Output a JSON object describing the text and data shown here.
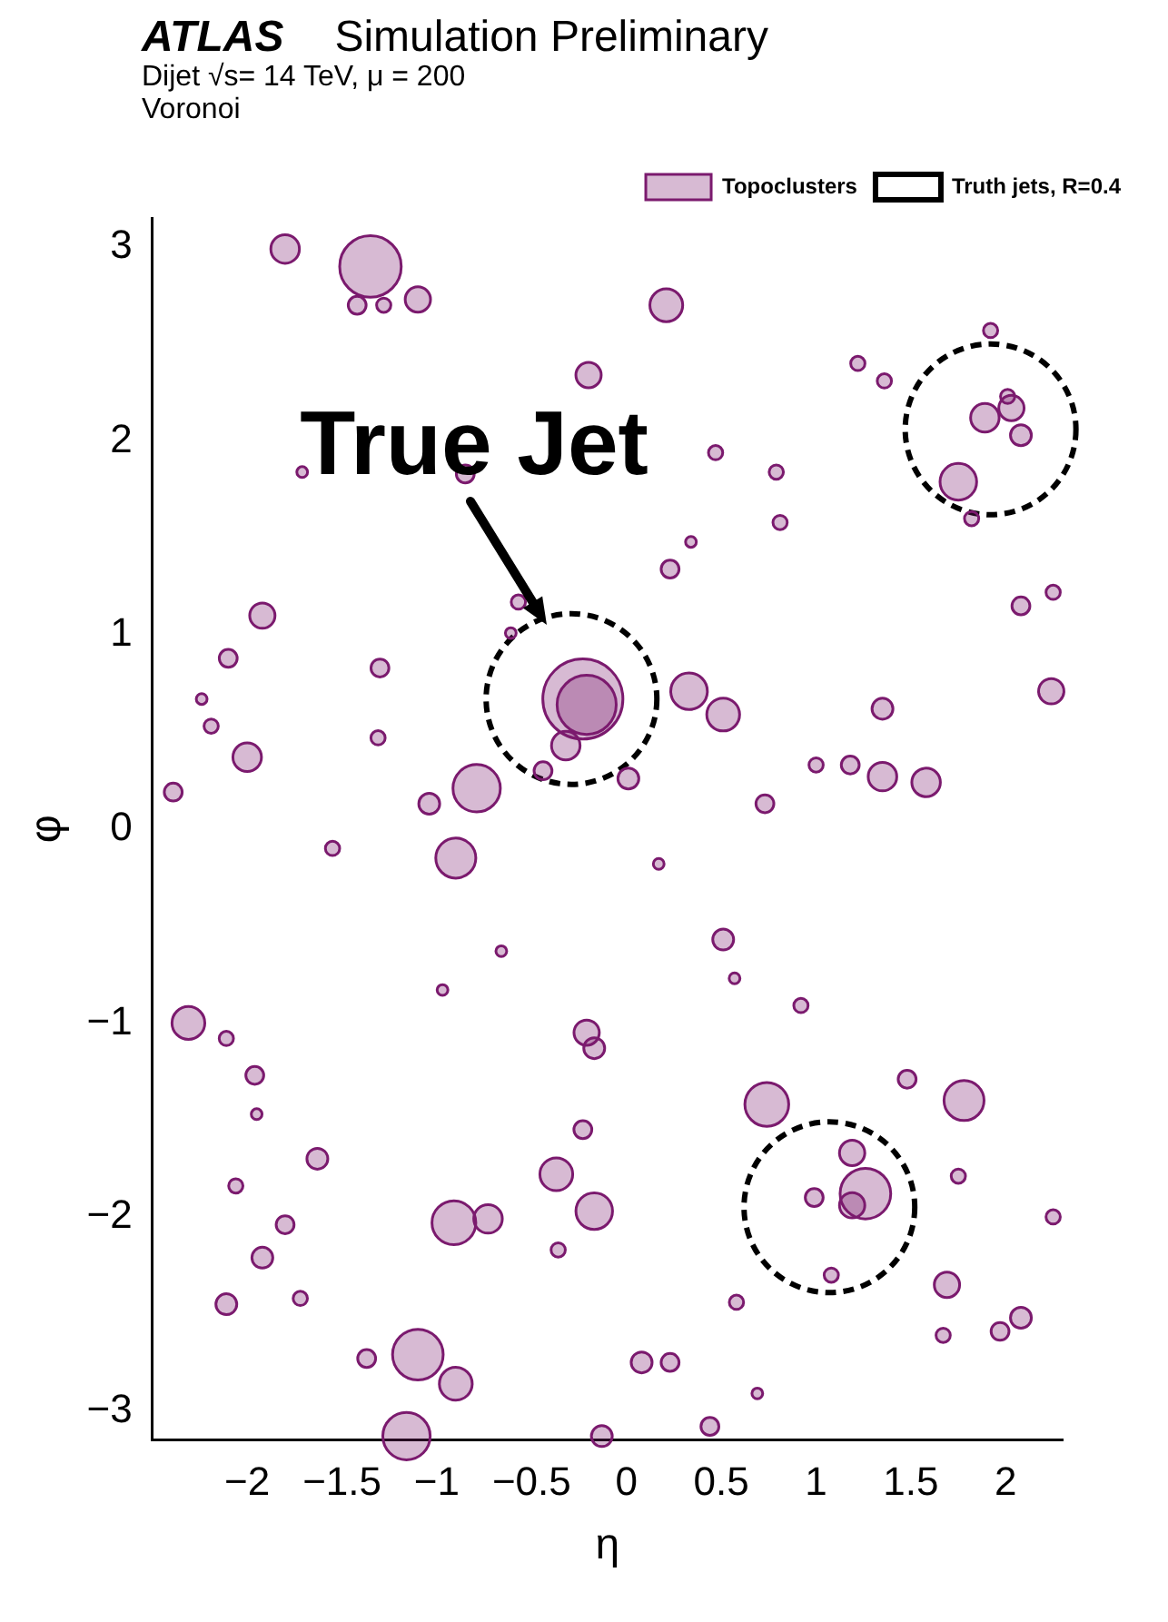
{
  "chart_data": {
    "type": "bubble",
    "title": "ATLAS",
    "subtitle": "Simulation Preliminary",
    "xlabel": "η",
    "ylabel": "φ",
    "annotations": [
      "Dijet √s= 14 TeV, μ = 200",
      "Voronoi",
      {
        "text": "True Jet",
        "x": -0.42,
        "y": 1.05
      }
    ],
    "xlim": [
      -2.5,
      2.3
    ],
    "xticks": [
      -2,
      -1.5,
      -1,
      -0.5,
      0,
      0.5,
      1,
      1.5,
      2
    ],
    "ylim": [
      -3.15,
      3.15
    ],
    "yticks": [
      -3,
      -2,
      -1,
      0,
      1,
      2,
      3
    ],
    "grid": false,
    "legend": "top right",
    "marker": "circle",
    "series": [
      {
        "name": "Topoclusters",
        "color": "#7b1a6e",
        "x": [
          -1.35,
          -1.8,
          -1.42,
          -1.28,
          -1.1,
          0.21,
          -0.2,
          0.47,
          0.79,
          1.75,
          -0.57,
          0.23,
          -1.92,
          -2.1,
          -0.23,
          -0.21,
          0.33,
          0.51,
          -0.32,
          -2.0,
          -0.79,
          -1.04,
          -0.44,
          1.35,
          1.58,
          1.18,
          1.0,
          0.73,
          -0.9,
          0.51,
          -2.31,
          -1.96,
          -0.21,
          -0.17,
          0.74,
          1.19,
          1.78,
          -1.63,
          -0.37,
          -0.23,
          -0.91,
          -0.73,
          -0.17,
          -1.92,
          -1.8,
          -2.11,
          -1.1,
          -1.16,
          -0.9,
          -1.37,
          0.08,
          -0.13,
          0.23,
          1.26,
          1.19,
          0.99,
          1.69,
          2.08,
          1.97,
          0.58,
          0.44,
          1.89,
          2.03,
          2.08,
          2.01,
          1.92,
          2.24,
          -2.39,
          1.35,
          -2.19,
          -2.24,
          1.22,
          1.36,
          0.81,
          1.82,
          0.01,
          0.17,
          -1.3,
          -1.55,
          -2.11,
          -2.06,
          -1.95,
          -0.97,
          -0.66,
          0.92,
          1.48,
          0.57,
          1.75,
          2.25,
          -1.72,
          -0.36,
          0.69,
          1.67,
          1.08,
          2.08,
          2.25,
          -0.61,
          -1.31,
          -1.71,
          -0.85,
          0.34
        ],
        "values": [
          2.9,
          2.99,
          2.7,
          2.7,
          2.73,
          2.7,
          2.34,
          1.94,
          1.84,
          1.79,
          1.17,
          1.34,
          1.1,
          0.88,
          0.67,
          0.64,
          0.71,
          0.59,
          0.43,
          0.37,
          0.21,
          0.13,
          0.3,
          0.27,
          0.24,
          0.33,
          0.33,
          0.13,
          -0.15,
          -0.57,
          -1.0,
          -1.27,
          -1.05,
          -1.13,
          -1.42,
          -1.67,
          -1.4,
          -1.7,
          -1.78,
          -1.55,
          -2.03,
          -2.01,
          -1.97,
          -2.21,
          -2.04,
          -2.45,
          -2.71,
          -3.13,
          -2.86,
          -2.73,
          -2.75,
          -3.13,
          -2.75,
          -1.88,
          -1.94,
          -1.9,
          -2.35,
          -2.52,
          -2.59,
          -2.44,
          -3.08,
          2.12,
          2.17,
          2.03,
          2.23,
          2.57,
          0.71,
          0.19,
          0.62,
          0.53,
          0.67,
          2.4,
          2.31,
          1.58,
          1.6,
          0.26,
          -0.18,
          0.83,
          -0.1,
          -1.08,
          -1.84,
          -1.47,
          -0.83,
          -0.63,
          -0.91,
          -1.29,
          -0.77,
          -1.79,
          -2.0,
          -2.42,
          -2.17,
          -2.91,
          -2.61,
          -2.3,
          1.15,
          1.22,
          1.01,
          0.47,
          1.84,
          1.83,
          1.48
        ],
        "sizes": [
          0.13,
          0.028,
          0.011,
          0.007,
          0.022,
          0.037,
          0.022,
          0.007,
          0.007,
          0.046,
          0.007,
          0.011,
          0.022,
          0.011,
          0.22,
          0.12,
          0.046,
          0.037,
          0.028,
          0.028,
          0.077,
          0.015,
          0.011,
          0.028,
          0.028,
          0.011,
          0.007,
          0.011,
          0.055,
          0.015,
          0.037,
          0.011,
          0.022,
          0.015,
          0.066,
          0.022,
          0.055,
          0.015,
          0.037,
          0.011,
          0.066,
          0.028,
          0.046,
          0.015,
          0.011,
          0.015,
          0.088,
          0.077,
          0.037,
          0.011,
          0.015,
          0.015,
          0.011,
          0.088,
          0.022,
          0.011,
          0.022,
          0.015,
          0.011,
          0.007,
          0.011,
          0.028,
          0.022,
          0.015,
          0.007,
          0.007,
          0.022,
          0.011,
          0.015,
          0.007,
          0.004,
          0.007,
          0.007,
          0.007,
          0.007,
          0.015,
          0.004,
          0.011,
          0.007,
          0.007,
          0.007,
          0.004,
          0.004,
          0.004,
          0.007,
          0.011,
          0.004,
          0.007,
          0.007,
          0.007,
          0.007,
          0.004,
          0.007,
          0.007,
          0.011,
          0.007,
          0.004,
          0.007,
          0.004,
          0.011,
          0.004
        ]
      },
      {
        "name": "Truth jets, R=0.4",
        "color": "#000000",
        "line_style": "dashed",
        "x": [
          -0.29,
          1.92,
          1.07
        ],
        "values": [
          0.67,
          2.06,
          -1.95
        ],
        "sizes": [
          1,
          1,
          1
        ]
      }
    ]
  }
}
